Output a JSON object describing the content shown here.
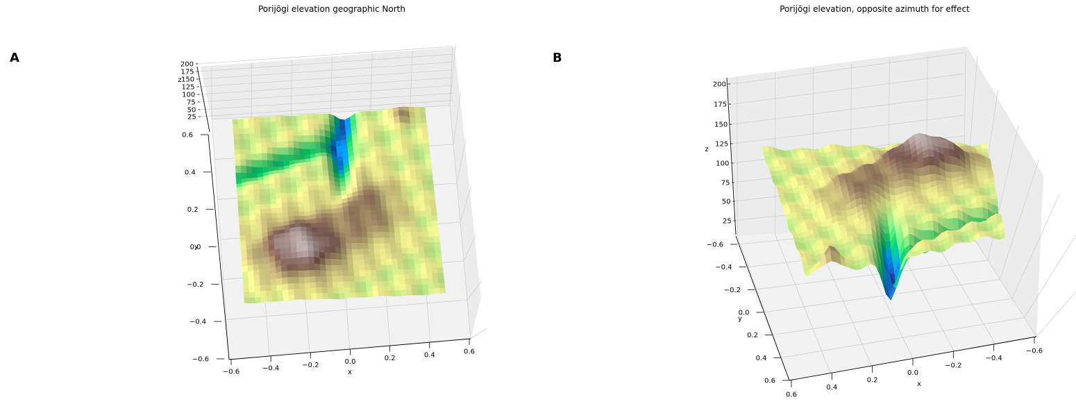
{
  "figure": {
    "panels": [
      {
        "label": "A",
        "title": "Porijõgi elevation geographic North"
      },
      {
        "label": "B",
        "title": "Porijõgi elevation, opposite azimuth for effect"
      }
    ]
  },
  "chart_data": [
    {
      "type": "surface",
      "title": "Porijõgi elevation geographic North",
      "panel_label": "A",
      "view": "looking down from geographic North",
      "colormap": "terrain",
      "xlabel": "x",
      "ylabel": "y",
      "zlabel": "z",
      "xlim": [
        -0.6,
        0.6
      ],
      "ylim": [
        -0.6,
        0.6
      ],
      "zlim": [
        0,
        200
      ],
      "x_ticks": [
        "−0.6",
        "−0.4",
        "−0.2",
        "0.0",
        "0.2",
        "0.4",
        "0.6"
      ],
      "y_ticks": [
        "0.6",
        "0.4",
        "0.2",
        "0.0",
        "−0.2",
        "−0.4",
        "−0.6"
      ],
      "z_ticks": [
        "200",
        "175",
        "150",
        "125",
        "100",
        "75",
        "50",
        "25"
      ],
      "grid": true,
      "features": [
        {
          "name": "river valley",
          "approx_x": 0.05,
          "approx_y": 0.55,
          "elevation": 20
        },
        {
          "name": "highland",
          "approx_x": -0.3,
          "approx_y": -0.25,
          "elevation": 180
        }
      ]
    },
    {
      "type": "surface",
      "title": "Porijõgi elevation, opposite azimuth for effect",
      "panel_label": "B",
      "view": "opposite azimuth",
      "colormap": "terrain",
      "xlabel": "x",
      "ylabel": "y",
      "zlabel": "z",
      "xlim": [
        -0.6,
        0.6
      ],
      "ylim": [
        -0.6,
        0.6
      ],
      "zlim": [
        0,
        200
      ],
      "x_ticks": [
        "0.6",
        "0.4",
        "0.2",
        "0.0",
        "−0.2",
        "−0.4",
        "−0.6"
      ],
      "y_ticks": [
        "−0.6",
        "−0.4",
        "−0.2",
        "0.0",
        "0.2",
        "0.4",
        "0.6"
      ],
      "z_ticks": [
        "200",
        "175",
        "150",
        "125",
        "100",
        "75",
        "50",
        "25"
      ],
      "grid": true
    }
  ]
}
